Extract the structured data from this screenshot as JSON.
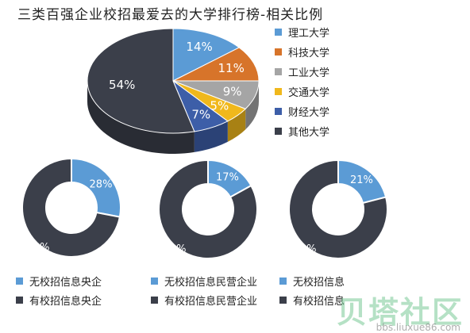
{
  "chart_data": [
    {
      "type": "pie",
      "title": "三类百强企业校招最爱去的大学排行榜-相关比例",
      "categories": [
        "理工大学",
        "科技大学",
        "工业大学",
        "交通大学",
        "财经大学",
        "其他大学"
      ],
      "values": [
        14,
        11,
        9,
        5,
        7,
        54
      ],
      "labels": [
        "14%",
        "11%",
        "9%",
        "5%",
        "7%",
        "54%"
      ],
      "colors": [
        "#5b9bd5",
        "#d7742a",
        "#a5a5a5",
        "#f0b81c",
        "#3d5ea8",
        "#3b3f4a"
      ],
      "legend_position": "right"
    },
    {
      "type": "pie",
      "categories": [
        "无校招信息央企",
        "有校招信息央企"
      ],
      "values": [
        28,
        72
      ],
      "labels": [
        "28%",
        "72%"
      ],
      "colors": [
        "#5b9bd5",
        "#3b3f4a"
      ]
    },
    {
      "type": "pie",
      "categories": [
        "无校招信息民营企业",
        "有校招信息民营企业"
      ],
      "values": [
        17,
        83
      ],
      "labels": [
        "17%",
        "83%"
      ],
      "colors": [
        "#5b9bd5",
        "#3b3f4a"
      ]
    },
    {
      "type": "pie",
      "categories": [
        "无校招信息",
        "有校招信息"
      ],
      "values": [
        21,
        79
      ],
      "labels": [
        "21%",
        "79%"
      ],
      "colors": [
        "#5b9bd5",
        "#3b3f4a"
      ]
    }
  ],
  "watermark": "贝塔社区",
  "watermark_url": "bbs.liuxue86.com"
}
